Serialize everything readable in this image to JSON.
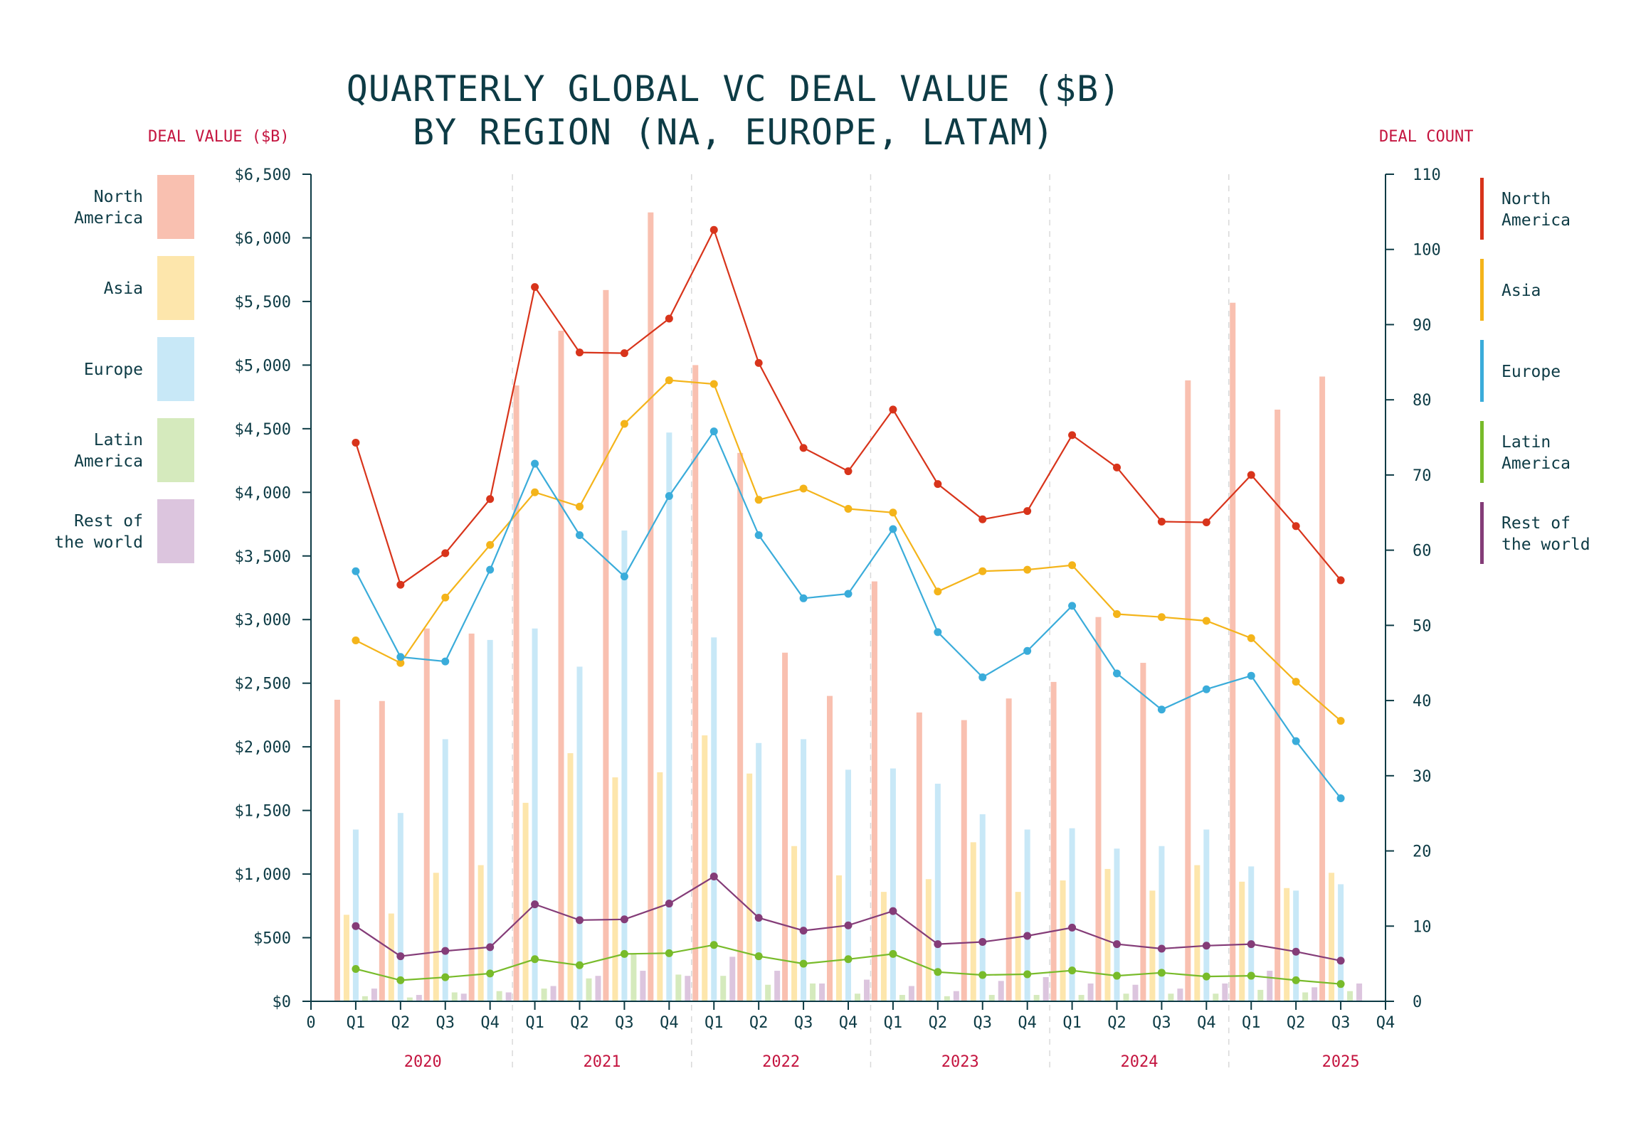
{
  "chart_data": {
    "type": "bar+line",
    "title_lines": [
      "QUARTERLY GLOBAL VC DEAL VALUE ($B)",
      "BY REGION (NA, EUROPE, LATAM)"
    ],
    "left_axis_title": "DEAL VALUE ($B)",
    "right_axis_title": "DEAL COUNT",
    "y_left": {
      "min": 0,
      "max": 6500,
      "step": 500,
      "tick_labels": [
        "$0",
        "$500",
        "$1,000",
        "$1,500",
        "$2,000",
        "$2,500",
        "$3,000",
        "$3,500",
        "$4,000",
        "$4,500",
        "$5,000",
        "$5,500",
        "$6,000",
        "$6,500"
      ]
    },
    "y_right": {
      "min": 0,
      "max": 110,
      "step": 10,
      "tick_labels": [
        "0",
        "10",
        "20",
        "30",
        "40",
        "50",
        "60",
        "70",
        "80",
        "90",
        "100",
        "110"
      ]
    },
    "x_edge_labels": [
      "0",
      "Q4"
    ],
    "years": [
      "2020",
      "2021",
      "2022",
      "2023",
      "2024",
      "2025"
    ],
    "categories": [
      "Q1",
      "Q2",
      "Q3",
      "Q4",
      "Q1",
      "Q2",
      "Q3",
      "Q4",
      "Q1",
      "Q2",
      "Q3",
      "Q4",
      "Q1",
      "Q2",
      "Q3",
      "Q4",
      "Q1",
      "Q2",
      "Q3",
      "Q4",
      "Q1",
      "Q2",
      "Q3"
    ],
    "bar_series": [
      {
        "name": "North America",
        "color": "#f9c0b0",
        "values": [
          2370,
          2360,
          2930,
          2890,
          4840,
          5270,
          5590,
          6200,
          5000,
          4310,
          2740,
          2400,
          3300,
          2270,
          2210,
          2380,
          2510,
          3020,
          2660,
          4880,
          5490,
          4650,
          4910
        ]
      },
      {
        "name": "Asia",
        "color": "#fde6ac",
        "values": [
          680,
          690,
          1010,
          1070,
          1560,
          1950,
          1760,
          1800,
          2090,
          1790,
          1220,
          990,
          860,
          960,
          1250,
          860,
          950,
          1040,
          870,
          1070,
          940,
          890,
          1010
        ]
      },
      {
        "name": "Europe",
        "color": "#c8e8f7",
        "values": [
          1350,
          1480,
          2060,
          2840,
          2930,
          2630,
          3700,
          4470,
          2860,
          2030,
          2060,
          1820,
          1830,
          1710,
          1470,
          1350,
          1360,
          1200,
          1220,
          1350,
          1060,
          870,
          920
        ]
      },
      {
        "name": "Latin America",
        "color": "#d5eabd",
        "values": [
          40,
          30,
          70,
          80,
          100,
          180,
          370,
          210,
          200,
          130,
          140,
          60,
          50,
          40,
          50,
          50,
          50,
          60,
          60,
          60,
          90,
          70,
          80
        ]
      },
      {
        "name": "Rest of the world",
        "color": "#dcc5de",
        "values": [
          100,
          50,
          60,
          70,
          120,
          200,
          240,
          200,
          350,
          240,
          140,
          170,
          120,
          80,
          160,
          190,
          140,
          130,
          100,
          140,
          240,
          110,
          140
        ]
      }
    ],
    "line_series": [
      {
        "name": "North America",
        "color": "#d8341b",
        "values": [
          74.3,
          55.4,
          59.6,
          66.8,
          95,
          86.3,
          86.2,
          90.8,
          102.6,
          84.9,
          73.6,
          70.5,
          78.7,
          68.8,
          64.1,
          65.2,
          75.3,
          71,
          63.8,
          63.7,
          70,
          63.2,
          56
        ]
      },
      {
        "name": "Asia",
        "color": "#f4b41a",
        "values": [
          48,
          45,
          53.7,
          60.7,
          67.7,
          65.8,
          76.8,
          82.6,
          82.1,
          66.7,
          68.2,
          65.5,
          65,
          54.5,
          57.2,
          57.4,
          58,
          51.5,
          51.1,
          50.6,
          48.3,
          42.5,
          37.3
        ]
      },
      {
        "name": "Europe",
        "color": "#3aacda",
        "values": [
          57.2,
          45.8,
          45.2,
          57.4,
          71.5,
          62,
          56.5,
          67.2,
          75.8,
          62,
          53.6,
          54.2,
          62.8,
          49.1,
          43.1,
          46.6,
          52.6,
          43.6,
          38.8,
          41.5,
          43.3,
          34.6,
          27
        ]
      },
      {
        "name": "Latin America",
        "color": "#78bb2a",
        "values": [
          4.3,
          2.8,
          3.2,
          3.7,
          5.6,
          4.8,
          6.3,
          6.4,
          7.5,
          6,
          5,
          5.6,
          6.3,
          3.9,
          3.5,
          3.6,
          4.1,
          3.4,
          3.8,
          3.3,
          3.4,
          2.8,
          2.3
        ]
      },
      {
        "name": "Rest of the world",
        "color": "#843c78",
        "values": [
          10,
          6,
          6.7,
          7.2,
          12.9,
          10.8,
          10.9,
          13,
          16.6,
          11.1,
          9.4,
          10.1,
          12,
          7.6,
          7.9,
          8.7,
          9.8,
          7.6,
          7,
          7.4,
          7.6,
          6.6,
          5.4
        ]
      }
    ],
    "bar_legend": [
      {
        "lines": [
          "North",
          "America"
        ],
        "color": "#f9c0b0"
      },
      {
        "lines": [
          "Asia"
        ],
        "color": "#fde6ac"
      },
      {
        "lines": [
          "Europe"
        ],
        "color": "#c8e8f7"
      },
      {
        "lines": [
          "Latin",
          "America"
        ],
        "color": "#d5eabd"
      },
      {
        "lines": [
          "Rest of",
          "the world"
        ],
        "color": "#dcc5de"
      }
    ],
    "line_legend": [
      {
        "lines": [
          "North",
          "America"
        ],
        "color": "#d8341b"
      },
      {
        "lines": [
          "Asia"
        ],
        "color": "#f4b41a"
      },
      {
        "lines": [
          "Europe"
        ],
        "color": "#3aacda"
      },
      {
        "lines": [
          "Latin",
          "America"
        ],
        "color": "#78bb2a"
      },
      {
        "lines": [
          "Rest of",
          "the world"
        ],
        "color": "#843c78"
      }
    ]
  }
}
